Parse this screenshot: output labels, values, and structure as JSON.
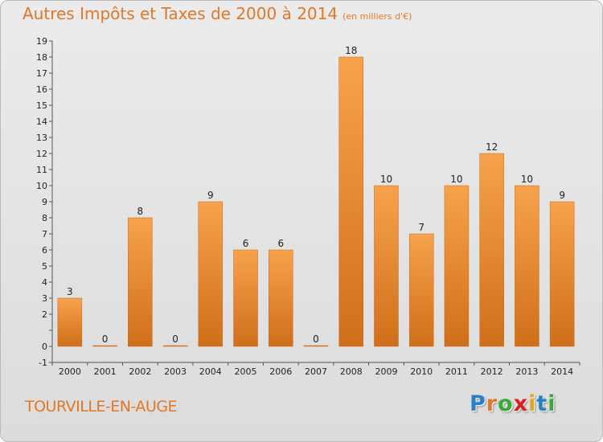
{
  "title": "Autres Impôts et Taxes de 2000 à 2014",
  "subtitle": "(en milliers d'€)",
  "commune": "TOURVILLE-EN-AUGE",
  "logo": {
    "letters": [
      "P",
      "r",
      "o",
      "x",
      "i",
      "t",
      "i"
    ],
    "colors": [
      "#2a7fc9",
      "#e0782a",
      "#3aa83a",
      "#d92020",
      "#e0a81a",
      "#2a7fc9",
      "#3aa83a"
    ]
  },
  "colors": {
    "bar": "#f0953e",
    "bar_dark": "#d06f1a",
    "accent": "#e0782a"
  },
  "chart_data": {
    "type": "bar",
    "categories": [
      "2000",
      "2001",
      "2002",
      "2003",
      "2004",
      "2005",
      "2006",
      "2007",
      "2008",
      "2009",
      "2010",
      "2011",
      "2012",
      "2013",
      "2014"
    ],
    "values": [
      3,
      0,
      8,
      0,
      9,
      6,
      6,
      0,
      18,
      10,
      7,
      10,
      12,
      10,
      9
    ],
    "data_labels": [
      "3",
      "0",
      "8",
      "0",
      "9",
      "6",
      "6",
      "0",
      "18",
      "10",
      "7",
      "10",
      "12",
      "10",
      "9"
    ],
    "y_ticks": [
      "-1",
      "0",
      "",
      "2",
      "3",
      "4",
      "5",
      "6",
      "7",
      "8",
      "9",
      "10",
      "11",
      "12",
      "13",
      "14",
      "15",
      "16",
      "17",
      "18",
      "19"
    ],
    "ylim": [
      -1,
      19
    ],
    "grid": false
  }
}
